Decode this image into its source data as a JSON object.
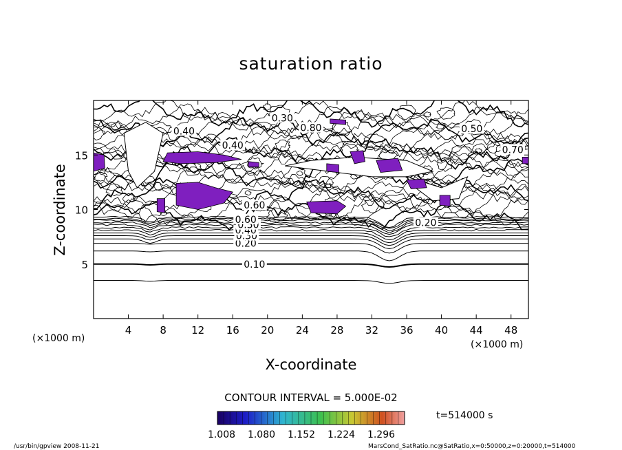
{
  "chart_data": {
    "type": "contour",
    "title": "saturation ratio",
    "xlabel": "X-coordinate",
    "ylabel": "Z-coordinate",
    "x_unit": "(×1000 m)",
    "y_unit": "(×1000 m)",
    "xlim": [
      0,
      50
    ],
    "ylim": [
      0,
      20
    ],
    "x_ticks": [
      4,
      8,
      12,
      16,
      20,
      24,
      28,
      32,
      36,
      40,
      44,
      48
    ],
    "y_ticks": [
      5,
      10,
      15
    ],
    "contour_labels": [
      {
        "text": "0.10",
        "x": 18.5,
        "z": 5.0
      },
      {
        "text": "0.20",
        "x": 17.5,
        "z": 6.9
      },
      {
        "text": "0.30",
        "x": 17.6,
        "z": 7.6
      },
      {
        "text": "0.40",
        "x": 17.5,
        "z": 8.1
      },
      {
        "text": "0.50",
        "x": 17.8,
        "z": 8.6
      },
      {
        "text": "0.60",
        "x": 17.5,
        "z": 9.1
      },
      {
        "text": "0.40",
        "x": 10.4,
        "z": 17.2
      },
      {
        "text": "0.30",
        "x": 21.7,
        "z": 18.4
      },
      {
        "text": "0.40",
        "x": 16.0,
        "z": 15.9
      },
      {
        "text": "0.60",
        "x": 18.5,
        "z": 10.4
      },
      {
        "text": "0.80",
        "x": 25.0,
        "z": 17.5
      },
      {
        "text": "0.50",
        "x": 43.5,
        "z": 17.4
      },
      {
        "text": "0.70",
        "x": 48.2,
        "z": 15.5
      },
      {
        "text": "0.20",
        "x": 38.2,
        "z": 8.8
      }
    ],
    "contour_interval_text": "CONTOUR INTERVAL = 5.000E-02",
    "colorbar": {
      "ticks": [
        "1.008",
        "1.080",
        "1.152",
        "1.224",
        "1.296"
      ],
      "range": [
        1.008,
        1.296
      ]
    },
    "time_label": "t=514000 s",
    "supersaturated_color": "#7f1fbf"
  },
  "footer": {
    "left": "/usr/bin/gpview   2008-11-21",
    "right": "MarsCond_SatRatio.nc@SatRatio,x=0:50000,z=0:20000,t=514000"
  }
}
